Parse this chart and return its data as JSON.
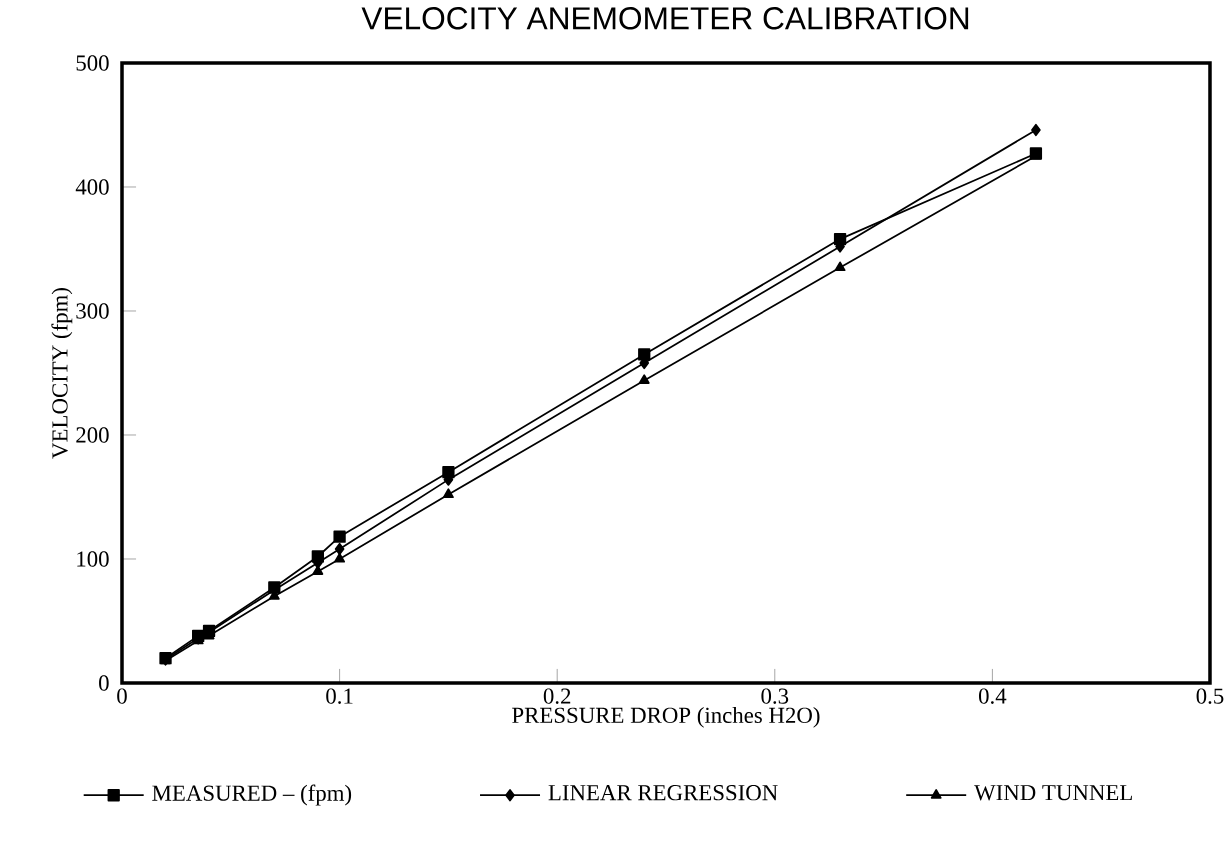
{
  "chart_data": {
    "type": "line",
    "title": "VELOCITY ANEMOMETER CALIBRATION",
    "xlabel": "PRESSURE DROP (inches H2O)",
    "ylabel": "VELOCITY (fpm)",
    "x": [
      0.02,
      0.035,
      0.04,
      0.07,
      0.09,
      0.1,
      0.15,
      0.24,
      0.33,
      0.42
    ],
    "series": [
      {
        "name": "MEASURED – (fpm)",
        "color": "#000000",
        "marker": "square",
        "values": [
          20,
          38,
          42,
          77,
          102,
          118,
          170,
          265,
          358,
          427
        ]
      },
      {
        "name": "LINEAR REGRESSION",
        "color": "#000000",
        "marker": "diamond",
        "values": [
          19,
          36,
          41,
          75,
          97,
          108,
          164,
          258,
          352,
          446
        ]
      },
      {
        "name": "WIND TUNNEL",
        "color": "#000000",
        "marker": "triangle",
        "values": [
          18,
          34,
          38,
          70,
          90,
          100,
          152,
          244,
          335,
          425
        ]
      }
    ],
    "xlim": [
      0,
      0.5
    ],
    "xticks": [
      0,
      0.1,
      0.2,
      0.3,
      0.4,
      0.5
    ],
    "ylim": [
      0,
      500
    ],
    "yticks": [
      0,
      100,
      200,
      300,
      400,
      500
    ],
    "grid": false,
    "legend": "bottom",
    "line_style": "solid"
  }
}
